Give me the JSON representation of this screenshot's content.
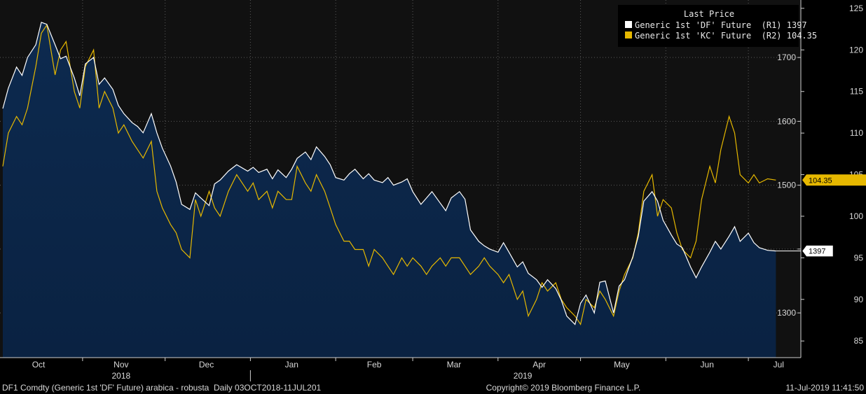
{
  "chart_data": {
    "type": "line",
    "legend": {
      "title": "Last Price",
      "placement": "top-right",
      "entries": [
        {
          "label": "Generic 1st 'DF' Future  (R1) 1397",
          "color": "#ffffff"
        },
        {
          "label": "Generic 1st 'KC' Future  (R2) 104.35",
          "color": "#e6b800"
        }
      ]
    },
    "x_axis": {
      "months": [
        "Oct",
        "Nov",
        "Dec",
        "Jan",
        "Feb",
        "Mar",
        "Apr",
        "May",
        "Jun",
        "Jul"
      ],
      "years": [
        "2018",
        "2019"
      ]
    },
    "y_axis_r1": {
      "ticks": [
        1300,
        1400,
        1500,
        1600,
        1700
      ],
      "tick_labels": [
        "1300",
        "",
        "1500",
        "1600",
        "1700"
      ],
      "range": [
        1230,
        1790
      ]
    },
    "y_axis_r2": {
      "ticks": [
        85,
        90,
        95,
        100,
        105,
        110,
        115,
        120,
        125
      ],
      "tick_labels": [
        "85",
        "90",
        "95",
        "100",
        "105",
        "110",
        "115",
        "120",
        "125"
      ],
      "range": [
        83,
        126
      ]
    },
    "grid": true,
    "series": [
      {
        "name": "Generic 1st 'DF' Future",
        "axis": "R1",
        "color": "#ffffff",
        "fill": true,
        "last_value_label": "1397",
        "points": [
          [
            "2018-10-03",
            1620
          ],
          [
            "2018-10-05",
            1652
          ],
          [
            "2018-10-08",
            1685
          ],
          [
            "2018-10-10",
            1672
          ],
          [
            "2018-10-12",
            1700
          ],
          [
            "2018-10-15",
            1720
          ],
          [
            "2018-10-17",
            1755
          ],
          [
            "2018-10-19",
            1752
          ],
          [
            "2018-10-22",
            1720
          ],
          [
            "2018-10-24",
            1698
          ],
          [
            "2018-10-26",
            1702
          ],
          [
            "2018-10-29",
            1668
          ],
          [
            "2018-10-31",
            1640
          ],
          [
            "2018-11-02",
            1690
          ],
          [
            "2018-11-05",
            1700
          ],
          [
            "2018-11-07",
            1658
          ],
          [
            "2018-11-09",
            1668
          ],
          [
            "2018-11-12",
            1650
          ],
          [
            "2018-11-14",
            1625
          ],
          [
            "2018-11-16",
            1612
          ],
          [
            "2018-11-19",
            1598
          ],
          [
            "2018-11-21",
            1592
          ],
          [
            "2018-11-23",
            1582
          ],
          [
            "2018-11-26",
            1612
          ],
          [
            "2018-11-28",
            1582
          ],
          [
            "2018-11-30",
            1558
          ],
          [
            "2018-12-03",
            1530
          ],
          [
            "2018-12-05",
            1505
          ],
          [
            "2018-12-07",
            1470
          ],
          [
            "2018-12-10",
            1462
          ],
          [
            "2018-12-12",
            1488
          ],
          [
            "2018-12-14",
            1480
          ],
          [
            "2018-12-17",
            1468
          ],
          [
            "2018-12-19",
            1502
          ],
          [
            "2018-12-21",
            1508
          ],
          [
            "2018-12-24",
            1522
          ],
          [
            "2018-12-27",
            1532
          ],
          [
            "2018-12-31",
            1522
          ],
          [
            "2019-01-02",
            1528
          ],
          [
            "2019-01-04",
            1520
          ],
          [
            "2019-01-07",
            1525
          ],
          [
            "2019-01-09",
            1510
          ],
          [
            "2019-01-11",
            1524
          ],
          [
            "2019-01-14",
            1512
          ],
          [
            "2019-01-16",
            1525
          ],
          [
            "2019-01-18",
            1542
          ],
          [
            "2019-01-21",
            1552
          ],
          [
            "2019-01-23",
            1540
          ],
          [
            "2019-01-25",
            1560
          ],
          [
            "2019-01-28",
            1545
          ],
          [
            "2019-01-30",
            1532
          ],
          [
            "2019-02-01",
            1512
          ],
          [
            "2019-02-04",
            1508
          ],
          [
            "2019-02-06",
            1518
          ],
          [
            "2019-02-08",
            1525
          ],
          [
            "2019-02-11",
            1510
          ],
          [
            "2019-02-13",
            1518
          ],
          [
            "2019-02-15",
            1508
          ],
          [
            "2019-02-18",
            1504
          ],
          [
            "2019-02-20",
            1512
          ],
          [
            "2019-02-22",
            1500
          ],
          [
            "2019-02-25",
            1505
          ],
          [
            "2019-02-27",
            1510
          ],
          [
            "2019-03-01",
            1490
          ],
          [
            "2019-03-04",
            1470
          ],
          [
            "2019-03-06",
            1480
          ],
          [
            "2019-03-08",
            1490
          ],
          [
            "2019-03-11",
            1472
          ],
          [
            "2019-03-13",
            1460
          ],
          [
            "2019-03-15",
            1480
          ],
          [
            "2019-03-18",
            1490
          ],
          [
            "2019-03-20",
            1478
          ],
          [
            "2019-03-22",
            1430
          ],
          [
            "2019-03-25",
            1412
          ],
          [
            "2019-03-27",
            1405
          ],
          [
            "2019-03-29",
            1400
          ],
          [
            "2019-04-01",
            1395
          ],
          [
            "2019-04-03",
            1410
          ],
          [
            "2019-04-05",
            1395
          ],
          [
            "2019-04-08",
            1372
          ],
          [
            "2019-04-10",
            1380
          ],
          [
            "2019-04-12",
            1362
          ],
          [
            "2019-04-15",
            1352
          ],
          [
            "2019-04-17",
            1340
          ],
          [
            "2019-04-19",
            1352
          ],
          [
            "2019-04-22",
            1338
          ],
          [
            "2019-04-24",
            1320
          ],
          [
            "2019-04-26",
            1295
          ],
          [
            "2019-04-29",
            1282
          ],
          [
            "2019-05-01",
            1315
          ],
          [
            "2019-05-03",
            1328
          ],
          [
            "2019-05-06",
            1300
          ],
          [
            "2019-05-08",
            1348
          ],
          [
            "2019-05-10",
            1350
          ],
          [
            "2019-05-13",
            1300
          ],
          [
            "2019-05-15",
            1342
          ],
          [
            "2019-05-17",
            1352
          ],
          [
            "2019-05-20",
            1388
          ],
          [
            "2019-05-22",
            1420
          ],
          [
            "2019-05-24",
            1475
          ],
          [
            "2019-05-27",
            1490
          ],
          [
            "2019-05-29",
            1475
          ],
          [
            "2019-05-31",
            1445
          ],
          [
            "2019-06-03",
            1422
          ],
          [
            "2019-06-05",
            1408
          ],
          [
            "2019-06-07",
            1402
          ],
          [
            "2019-06-10",
            1372
          ],
          [
            "2019-06-12",
            1355
          ],
          [
            "2019-06-14",
            1372
          ],
          [
            "2019-06-17",
            1395
          ],
          [
            "2019-06-19",
            1412
          ],
          [
            "2019-06-21",
            1400
          ],
          [
            "2019-06-24",
            1420
          ],
          [
            "2019-06-26",
            1435
          ],
          [
            "2019-06-28",
            1412
          ],
          [
            "2019-07-01",
            1425
          ],
          [
            "2019-07-03",
            1410
          ],
          [
            "2019-07-05",
            1402
          ],
          [
            "2019-07-08",
            1398
          ],
          [
            "2019-07-11",
            1397
          ]
        ]
      },
      {
        "name": "Generic 1st 'KC' Future",
        "axis": "R2",
        "color": "#e6b800",
        "fill": false,
        "last_value_label": "104.35",
        "points": [
          [
            "2018-10-03",
            106
          ],
          [
            "2018-10-05",
            110
          ],
          [
            "2018-10-08",
            112
          ],
          [
            "2018-10-10",
            111
          ],
          [
            "2018-10-12",
            113
          ],
          [
            "2018-10-15",
            118
          ],
          [
            "2018-10-17",
            122
          ],
          [
            "2018-10-19",
            123
          ],
          [
            "2018-10-22",
            117
          ],
          [
            "2018-10-24",
            120
          ],
          [
            "2018-10-26",
            121
          ],
          [
            "2018-10-29",
            115
          ],
          [
            "2018-10-31",
            113
          ],
          [
            "2018-11-02",
            118
          ],
          [
            "2018-11-05",
            120
          ],
          [
            "2018-11-07",
            113
          ],
          [
            "2018-11-09",
            115
          ],
          [
            "2018-11-12",
            113
          ],
          [
            "2018-11-14",
            110
          ],
          [
            "2018-11-16",
            111
          ],
          [
            "2018-11-19",
            109
          ],
          [
            "2018-11-21",
            108
          ],
          [
            "2018-11-23",
            107
          ],
          [
            "2018-11-26",
            109
          ],
          [
            "2018-11-28",
            103
          ],
          [
            "2018-11-30",
            101
          ],
          [
            "2018-12-03",
            99
          ],
          [
            "2018-12-05",
            98
          ],
          [
            "2018-12-07",
            96
          ],
          [
            "2018-12-10",
            95
          ],
          [
            "2018-12-12",
            102
          ],
          [
            "2018-12-14",
            100
          ],
          [
            "2018-12-17",
            103
          ],
          [
            "2018-12-19",
            101
          ],
          [
            "2018-12-21",
            100
          ],
          [
            "2018-12-24",
            103
          ],
          [
            "2018-12-27",
            105
          ],
          [
            "2018-12-31",
            103
          ],
          [
            "2019-01-02",
            104
          ],
          [
            "2019-01-04",
            102
          ],
          [
            "2019-01-07",
            103
          ],
          [
            "2019-01-09",
            101
          ],
          [
            "2019-01-11",
            103
          ],
          [
            "2019-01-14",
            102
          ],
          [
            "2019-01-16",
            102
          ],
          [
            "2019-01-18",
            106
          ],
          [
            "2019-01-21",
            104
          ],
          [
            "2019-01-23",
            103
          ],
          [
            "2019-01-25",
            105
          ],
          [
            "2019-01-28",
            103
          ],
          [
            "2019-01-30",
            101
          ],
          [
            "2019-02-01",
            99
          ],
          [
            "2019-02-04",
            97
          ],
          [
            "2019-02-06",
            97
          ],
          [
            "2019-02-08",
            96
          ],
          [
            "2019-02-11",
            96
          ],
          [
            "2019-02-13",
            94
          ],
          [
            "2019-02-15",
            96
          ],
          [
            "2019-02-18",
            95
          ],
          [
            "2019-02-20",
            94
          ],
          [
            "2019-02-22",
            93
          ],
          [
            "2019-02-25",
            95
          ],
          [
            "2019-02-27",
            94
          ],
          [
            "2019-03-01",
            95
          ],
          [
            "2019-03-04",
            94
          ],
          [
            "2019-03-06",
            93
          ],
          [
            "2019-03-08",
            94
          ],
          [
            "2019-03-11",
            95
          ],
          [
            "2019-03-13",
            94
          ],
          [
            "2019-03-15",
            95
          ],
          [
            "2019-03-18",
            95
          ],
          [
            "2019-03-20",
            94
          ],
          [
            "2019-03-22",
            93
          ],
          [
            "2019-03-25",
            94
          ],
          [
            "2019-03-27",
            95
          ],
          [
            "2019-03-29",
            94
          ],
          [
            "2019-04-01",
            93
          ],
          [
            "2019-04-03",
            92
          ],
          [
            "2019-04-05",
            93
          ],
          [
            "2019-04-08",
            90
          ],
          [
            "2019-04-10",
            91
          ],
          [
            "2019-04-12",
            88
          ],
          [
            "2019-04-15",
            90
          ],
          [
            "2019-04-17",
            92
          ],
          [
            "2019-04-19",
            91
          ],
          [
            "2019-04-22",
            92
          ],
          [
            "2019-04-24",
            90
          ],
          [
            "2019-04-26",
            89
          ],
          [
            "2019-04-29",
            88
          ],
          [
            "2019-05-01",
            87
          ],
          [
            "2019-05-03",
            90
          ],
          [
            "2019-05-06",
            89
          ],
          [
            "2019-05-08",
            91
          ],
          [
            "2019-05-10",
            90
          ],
          [
            "2019-05-13",
            88
          ],
          [
            "2019-05-15",
            91
          ],
          [
            "2019-05-17",
            93
          ],
          [
            "2019-05-20",
            95
          ],
          [
            "2019-05-22",
            98
          ],
          [
            "2019-05-24",
            103
          ],
          [
            "2019-05-27",
            105
          ],
          [
            "2019-05-29",
            100
          ],
          [
            "2019-05-31",
            102
          ],
          [
            "2019-06-03",
            101
          ],
          [
            "2019-06-05",
            98
          ],
          [
            "2019-06-07",
            96
          ],
          [
            "2019-06-10",
            95
          ],
          [
            "2019-06-12",
            97
          ],
          [
            "2019-06-14",
            102
          ],
          [
            "2019-06-17",
            106
          ],
          [
            "2019-06-19",
            104
          ],
          [
            "2019-06-21",
            108
          ],
          [
            "2019-06-24",
            112
          ],
          [
            "2019-06-26",
            110
          ],
          [
            "2019-06-28",
            105
          ],
          [
            "2019-07-01",
            104
          ],
          [
            "2019-07-03",
            105
          ],
          [
            "2019-07-05",
            104
          ],
          [
            "2019-07-08",
            104.5
          ],
          [
            "2019-07-11",
            104.35
          ]
        ]
      }
    ]
  },
  "footer": {
    "left": "DF1 Comdty (Generic 1st 'DF' Future) arabica - robusta  Daily 03OCT2018-11JUL201",
    "center": "Copyright© 2019 Bloomberg Finance L.P.",
    "right": "11-Jul-2019 11:41:50"
  }
}
